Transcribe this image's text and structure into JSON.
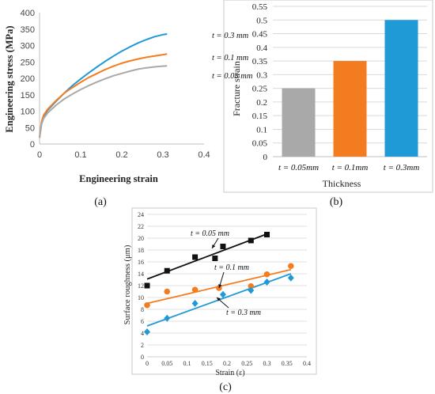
{
  "colors": {
    "gray": "#a9a9a9",
    "orange": "#f47c20",
    "blue": "#1f9ad7",
    "black": "#111111",
    "grid": "#d9d9d9",
    "axis": "#bfbfbf"
  },
  "chart_data": [
    {
      "id": "a",
      "type": "line",
      "caption": "(a)",
      "xlabel": "Engineering strain",
      "ylabel": "Engineering stress (MPa)",
      "xlim": [
        0,
        0.4
      ],
      "ylim": [
        0,
        400
      ],
      "xticks": [
        "0",
        "0.1",
        "0.2",
        "0.3",
        "0.4"
      ],
      "yticks": [
        "0",
        "50",
        "100",
        "150",
        "200",
        "250",
        "300",
        "350",
        "400"
      ],
      "grid": false,
      "series": [
        {
          "name": "t = 0.3 mm",
          "color": "#1f9ad7",
          "x": [
            0,
            0.005,
            0.01,
            0.02,
            0.04,
            0.06,
            0.08,
            0.1,
            0.12,
            0.14,
            0.16,
            0.18,
            0.2,
            0.22,
            0.24,
            0.26,
            0.28,
            0.3,
            0.31
          ],
          "y": [
            20,
            65,
            85,
            103,
            130,
            155,
            178,
            198,
            217,
            235,
            252,
            268,
            283,
            296,
            308,
            318,
            327,
            333,
            335
          ]
        },
        {
          "name": "t = 0.1 mm",
          "color": "#f47c20",
          "x": [
            0,
            0.005,
            0.01,
            0.02,
            0.04,
            0.06,
            0.08,
            0.1,
            0.12,
            0.14,
            0.16,
            0.18,
            0.2,
            0.22,
            0.24,
            0.26,
            0.28,
            0.3,
            0.31
          ],
          "y": [
            20,
            68,
            88,
            106,
            132,
            155,
            172,
            188,
            203,
            215,
            227,
            237,
            246,
            253,
            259,
            264,
            268,
            272,
            274
          ]
        },
        {
          "name": "t = 0.05 mm",
          "color": "#a9a9a9",
          "x": [
            0,
            0.005,
            0.01,
            0.02,
            0.04,
            0.06,
            0.08,
            0.1,
            0.12,
            0.14,
            0.16,
            0.18,
            0.2,
            0.22,
            0.24,
            0.26,
            0.28,
            0.3,
            0.31
          ],
          "y": [
            18,
            60,
            78,
            95,
            118,
            137,
            152,
            166,
            178,
            189,
            199,
            208,
            215,
            222,
            228,
            232,
            235,
            237,
            238
          ]
        }
      ]
    },
    {
      "id": "b",
      "type": "bar",
      "caption": "(b)",
      "xlabel": "Thickness",
      "ylabel": "Fracture strain",
      "ylim": [
        0,
        0.55
      ],
      "yticks": [
        "0",
        "0.05",
        "0.1",
        "0.15",
        "0.2",
        "0.25",
        "0.3",
        "0.35",
        "0.4",
        "0.45",
        "0.5",
        "0.55"
      ],
      "grid": true,
      "categories": [
        "t = 0.05mm",
        "t = 0.1mm",
        "t = 0.3mm"
      ],
      "values": [
        0.25,
        0.35,
        0.5
      ],
      "colors": [
        "#a9a9a9",
        "#f47c20",
        "#1f9ad7"
      ]
    },
    {
      "id": "c",
      "type": "scatter",
      "caption": "(c)",
      "xlabel": "Strain (ε)",
      "ylabel": "Surface roughness (μm)",
      "xlim": [
        0,
        0.4
      ],
      "ylim": [
        0,
        24
      ],
      "xticks": [
        "0",
        "0.05",
        "0.1",
        "0.15",
        "0.2",
        "0.25",
        "0.3",
        "0.35",
        "0.4"
      ],
      "yticks": [
        "0",
        "2",
        "4",
        "6",
        "8",
        "10",
        "12",
        "14",
        "16",
        "18",
        "20",
        "22",
        "24"
      ],
      "grid": true,
      "series": [
        {
          "name": "t = 0.05 mm",
          "color": "#111111",
          "marker": "square",
          "x": [
            0,
            0.05,
            0.12,
            0.17,
            0.19,
            0.26,
            0.3
          ],
          "y": [
            12,
            14.5,
            16.8,
            16.6,
            18.6,
            19.6,
            20.6
          ],
          "trend": [
            [
              0,
              13.1
            ],
            [
              0.3,
              20.7
            ]
          ]
        },
        {
          "name": "t = 0.1 mm",
          "color": "#f47c20",
          "marker": "circle",
          "x": [
            0,
            0.05,
            0.12,
            0.18,
            0.26,
            0.3,
            0.36
          ],
          "y": [
            8.7,
            11,
            11.3,
            11.6,
            11.9,
            13.9,
            15.3
          ],
          "trend": [
            [
              0,
              9.0
            ],
            [
              0.36,
              14.7
            ]
          ]
        },
        {
          "name": "t = 0.3 mm",
          "color": "#1f9ad7",
          "marker": "diamond",
          "x": [
            0,
            0.05,
            0.12,
            0.19,
            0.26,
            0.3,
            0.36
          ],
          "y": [
            4.2,
            6.5,
            9,
            10.5,
            11.2,
            12.6,
            13.3
          ],
          "trend": [
            [
              0,
              5.2
            ],
            [
              0.36,
              14.0
            ]
          ]
        }
      ]
    }
  ]
}
